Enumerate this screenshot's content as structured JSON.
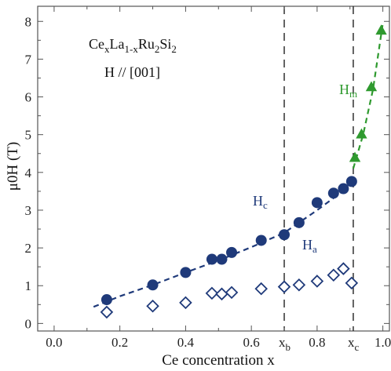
{
  "chart_data": {
    "type": "scatter",
    "xlabel": "Ce concentration x",
    "ylabel": "μ0H (T)",
    "xlim": [
      -0.05,
      1.02
    ],
    "ylim": [
      -0.2,
      8.4
    ],
    "xticks": [
      "0.0",
      "0.2",
      "0.4",
      "0.6",
      "0.8",
      "1.0"
    ],
    "xtick_values": [
      0.0,
      0.2,
      0.4,
      0.6,
      0.8,
      1.0
    ],
    "yticks": [
      "0",
      "1",
      "2",
      "3",
      "4",
      "5",
      "6",
      "7",
      "8"
    ],
    "ytick_values": [
      0,
      1,
      2,
      3,
      4,
      5,
      6,
      7,
      8
    ],
    "grid": false,
    "annotations": {
      "compound_parts": [
        "Ce",
        "x",
        "La",
        "1-x",
        "Ru",
        "2",
        "Si",
        "2"
      ],
      "field_direction": "H // [001]",
      "hc_base": "H",
      "hc_sub": "c",
      "ha_base": "H",
      "ha_sub": "a",
      "hm_base": "H",
      "hm_sub": "m",
      "xb_base": "x",
      "xb_sub": "b",
      "xc_base": "x",
      "xc_sub": "c"
    },
    "vlines": [
      {
        "name": "xb",
        "x": 0.7
      },
      {
        "name": "xc",
        "x": 0.91
      }
    ],
    "colors": {
      "Hc": "#1f3a7a",
      "Ha": "#1f3a7a",
      "Hm": "#2f9a2f",
      "axis": "#555555",
      "vline": "#222222"
    },
    "series": [
      {
        "name": "Hc",
        "marker": "filled-circle",
        "points": [
          [
            0.16,
            0.63
          ],
          [
            0.3,
            1.02
          ],
          [
            0.4,
            1.35
          ],
          [
            0.48,
            1.7
          ],
          [
            0.51,
            1.7
          ],
          [
            0.54,
            1.88
          ],
          [
            0.63,
            2.2
          ],
          [
            0.7,
            2.35
          ],
          [
            0.745,
            2.67
          ],
          [
            0.8,
            3.2
          ],
          [
            0.85,
            3.45
          ],
          [
            0.88,
            3.57
          ],
          [
            0.905,
            3.76
          ]
        ]
      },
      {
        "name": "Ha",
        "marker": "open-diamond",
        "points": [
          [
            0.16,
            0.3
          ],
          [
            0.3,
            0.46
          ],
          [
            0.4,
            0.55
          ],
          [
            0.48,
            0.8
          ],
          [
            0.51,
            0.78
          ],
          [
            0.54,
            0.82
          ],
          [
            0.63,
            0.92
          ],
          [
            0.7,
            0.97
          ],
          [
            0.745,
            1.02
          ],
          [
            0.8,
            1.12
          ],
          [
            0.85,
            1.28
          ],
          [
            0.88,
            1.45
          ],
          [
            0.905,
            1.07
          ]
        ]
      },
      {
        "name": "Hm",
        "marker": "filled-triangle",
        "points": [
          [
            0.915,
            4.38
          ],
          [
            0.935,
            5.0
          ],
          [
            0.965,
            6.25
          ],
          [
            0.995,
            7.75
          ]
        ]
      }
    ],
    "fits": [
      {
        "name": "Hc-fit",
        "points": [
          [
            0.12,
            0.44
          ],
          [
            0.2,
            0.72
          ],
          [
            0.3,
            1.02
          ],
          [
            0.4,
            1.35
          ],
          [
            0.5,
            1.67
          ],
          [
            0.6,
            2.02
          ],
          [
            0.7,
            2.4
          ],
          [
            0.8,
            3.0
          ],
          [
            0.87,
            3.45
          ],
          [
            0.91,
            3.8
          ]
        ]
      },
      {
        "name": "Hm-fit",
        "points": [
          [
            0.91,
            4.1
          ],
          [
            0.94,
            5.0
          ],
          [
            0.97,
            6.2
          ],
          [
            1.0,
            7.95
          ]
        ]
      }
    ]
  }
}
